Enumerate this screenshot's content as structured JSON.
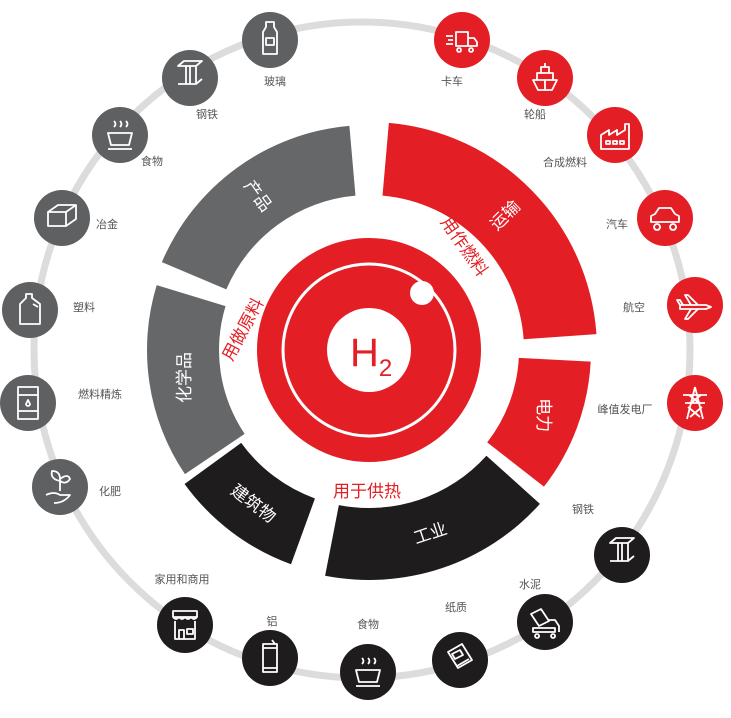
{
  "center": {
    "formula": "H",
    "subscript": "2"
  },
  "categories": [
    {
      "label": "用做原料",
      "color": "#e31e24"
    },
    {
      "label": "用作燃料",
      "color": "#e31e24"
    },
    {
      "label": "用于供热",
      "color": "#e31e24"
    }
  ],
  "segments": [
    {
      "label": "产品",
      "color": "#666769",
      "group": "用做原料"
    },
    {
      "label": "化学品",
      "color": "#666769",
      "group": "用做原料"
    },
    {
      "label": "运输",
      "color": "#e31e24",
      "group": "用作燃料"
    },
    {
      "label": "电力",
      "color": "#e31e24",
      "group": "用作燃料"
    },
    {
      "label": "工业",
      "color": "#1e1c1d",
      "group": "用于供热"
    },
    {
      "label": "建筑物",
      "color": "#1e1c1d",
      "group": "用于供热"
    }
  ],
  "nodes": [
    {
      "label": "玻璃",
      "icon": "bottle-icon",
      "color": "#5f6062"
    },
    {
      "label": "钢铁",
      "icon": "steel-beam-icon",
      "color": "#5f6062"
    },
    {
      "label": "食物",
      "icon": "food-bowl-icon",
      "color": "#5f6062"
    },
    {
      "label": "冶金",
      "icon": "brick-icon",
      "color": "#5f6062"
    },
    {
      "label": "塑料",
      "icon": "plastic-jug-icon",
      "color": "#5f6062"
    },
    {
      "label": "燃料精炼",
      "icon": "oil-barrel-icon",
      "color": "#5f6062"
    },
    {
      "label": "化肥",
      "icon": "plant-hand-icon",
      "color": "#5f6062"
    },
    {
      "label": "卡车",
      "icon": "truck-icon",
      "color": "#e31e24"
    },
    {
      "label": "轮船",
      "icon": "ship-icon",
      "color": "#e31e24"
    },
    {
      "label": "合成燃料",
      "icon": "factory-icon",
      "color": "#e31e24"
    },
    {
      "label": "汽车",
      "icon": "car-icon",
      "color": "#e31e24"
    },
    {
      "label": "航空",
      "icon": "airplane-icon",
      "color": "#e31e24"
    },
    {
      "label": "峰值发电厂",
      "icon": "power-tower-icon",
      "color": "#e31e24"
    },
    {
      "label": "钢铁",
      "icon": "steel-beam-icon",
      "color": "#1e1c1d"
    },
    {
      "label": "水泥",
      "icon": "cement-mixer-icon",
      "color": "#1e1c1d"
    },
    {
      "label": "纸质",
      "icon": "newspaper-icon",
      "color": "#1e1c1d"
    },
    {
      "label": "食物",
      "icon": "food-bowl-icon",
      "color": "#1e1c1d"
    },
    {
      "label": "铝",
      "icon": "can-icon",
      "color": "#1e1c1d"
    },
    {
      "label": "家用和商用",
      "icon": "store-icon",
      "color": "#1e1c1d"
    }
  ]
}
